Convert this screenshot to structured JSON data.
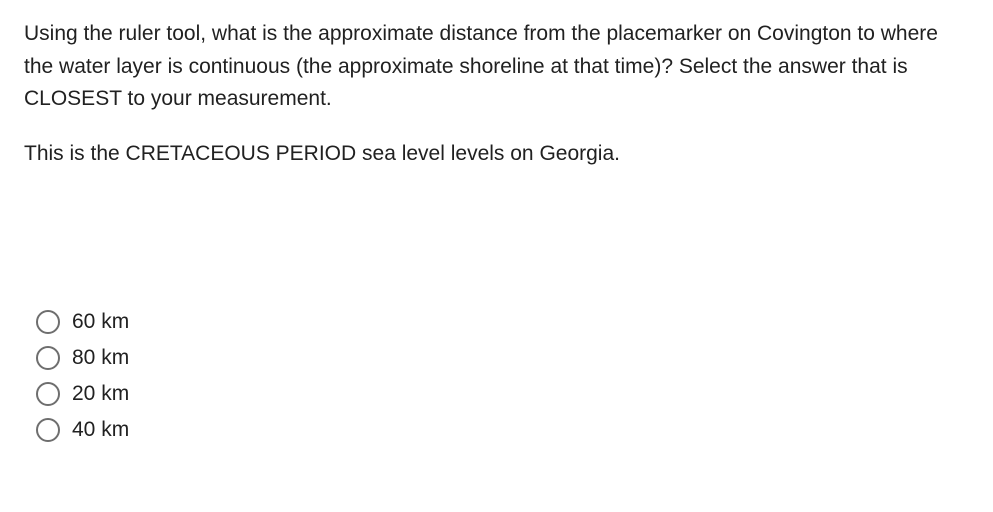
{
  "question": {
    "prompt": "Using the ruler tool, what is the approximate distance from the placemarker on Covington to where the water layer is continuous (the approximate shoreline at that time)?  Select the answer that is CLOSEST to your measurement.",
    "context": "This is the CRETACEOUS PERIOD sea level levels on Georgia."
  },
  "options": [
    {
      "label": "60 km"
    },
    {
      "label": "80 km"
    },
    {
      "label": "20 km"
    },
    {
      "label": "40 km"
    }
  ],
  "style": {
    "text_color": "#212121",
    "background_color": "#ffffff",
    "radio_border_color": "#6e6e6e",
    "font_size_pt": 16
  }
}
